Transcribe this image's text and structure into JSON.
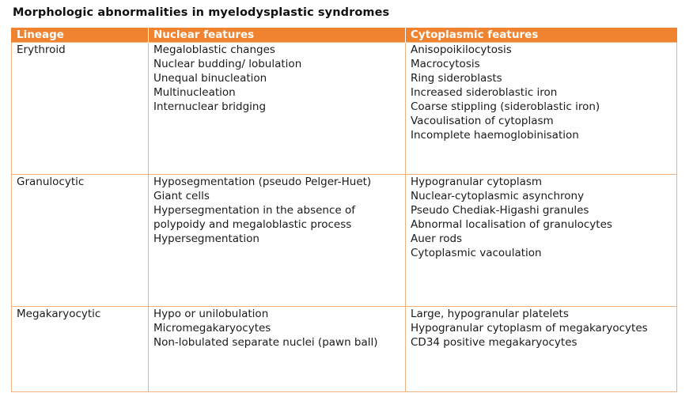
{
  "document": {
    "title": "Morphologic abnormalities in myelodysplastic syndromes"
  },
  "table": {
    "headers": [
      "Lineage",
      "Nuclear features",
      "Cytoplasmic features"
    ],
    "header_color": "#f0832f",
    "border_color": "#f0b17f",
    "rows": [
      {
        "lineage": "Erythroid",
        "nuclear": [
          "Megaloblastic changes",
          "Nuclear budding/ lobulation",
          "Unequal binucleation",
          "Multinucleation",
          "Internuclear bridging"
        ],
        "cytoplasmic": [
          "Anisopoikilocytosis",
          "Macrocytosis",
          "Ring sideroblasts",
          "Increased sideroblastic iron",
          "Coarse stippling (sideroblastic iron)",
          "Vacoulisation of cytoplasm",
          "Incomplete haemoglobinisation"
        ]
      },
      {
        "lineage": "Granulocytic",
        "nuclear": [
          "Hyposegmentation (pseudo Pelger-Huet)",
          "Giant cells",
          "Hypersegmentation in the absence of",
          "polypoidy and megaloblastic process",
          "Hypersegmentation"
        ],
        "cytoplasmic": [
          "Hypogranular cytoplasm",
          "Nuclear-cytoplasmic asynchrony",
          "Pseudo Chediak-Higashi granules",
          "Abnormal localisation of granulocytes",
          "Auer rods",
          "Cytoplasmic vacoulation"
        ]
      },
      {
        "lineage": "Megakaryocytic",
        "nuclear": [
          "Hypo or unilobulation",
          "Micromegakaryocytes",
          "Non-lobulated separate nuclei (pawn ball)"
        ],
        "cytoplasmic": [
          "Large, hypogranular platelets",
          "Hypogranular cytoplasm of megakaryocytes",
          "CD34 positive megakaryocytes"
        ]
      }
    ]
  }
}
